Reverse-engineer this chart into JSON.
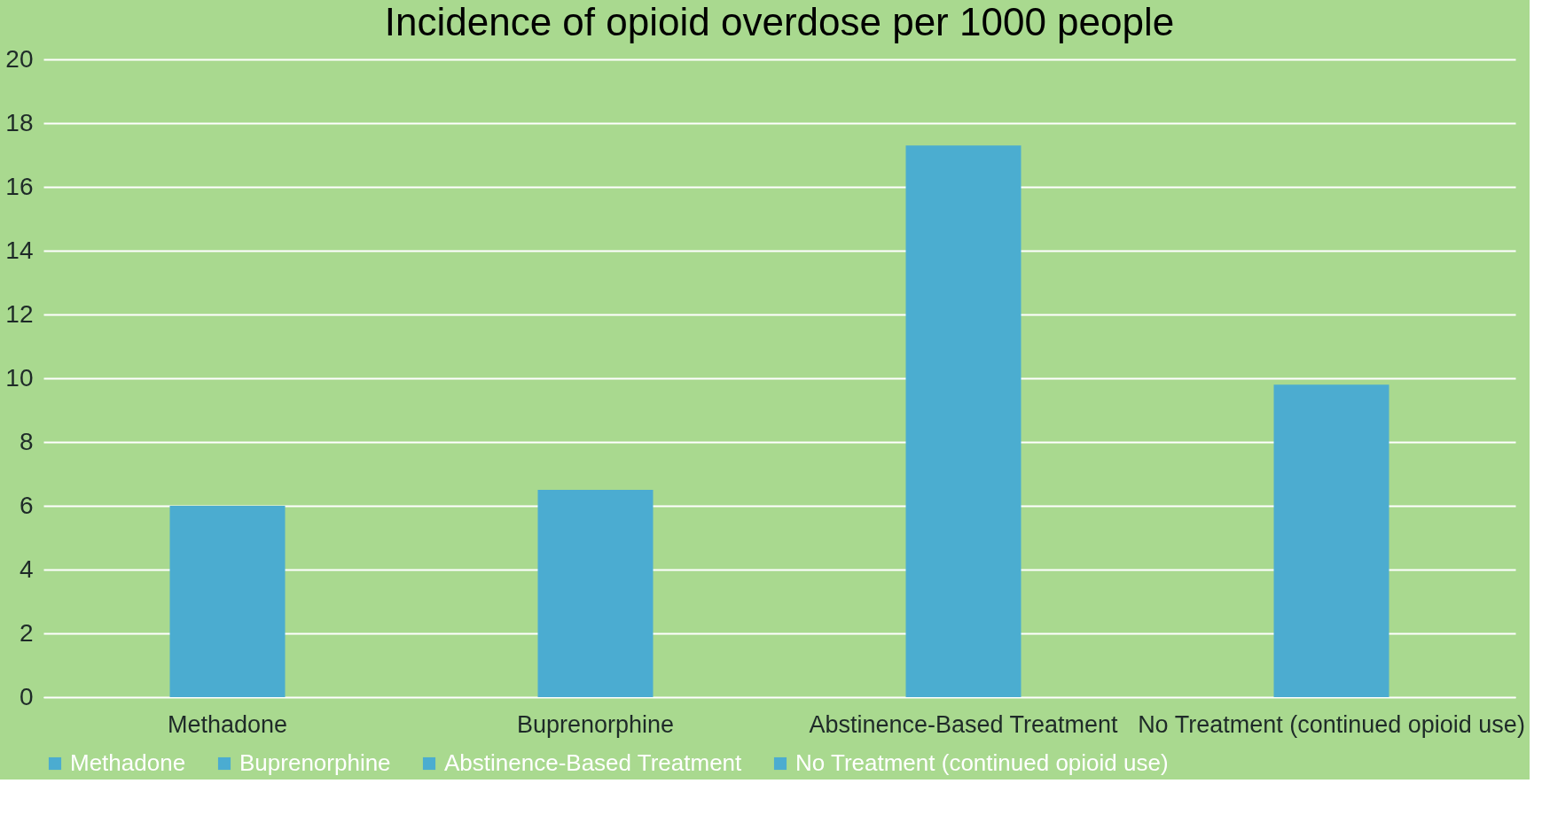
{
  "chart_data": {
    "type": "bar",
    "title": "Incidence of opioid overdose per 1000 people",
    "categories": [
      "Methadone",
      "Buprenorphine",
      "Abstinence-Based Treatment",
      "No Treatment (continued opioid use)"
    ],
    "series": [
      {
        "name": "Methadone",
        "color": "#4bacd0",
        "values": [
          6.0,
          null,
          null,
          null
        ]
      },
      {
        "name": "Buprenorphine",
        "color": "#4bacd1",
        "values": [
          null,
          6.5,
          null,
          null
        ]
      },
      {
        "name": "Abstinence-Based Treatment",
        "color": "#4badd0",
        "values": [
          null,
          null,
          17.3,
          null
        ]
      },
      {
        "name": "No Treatment (continued opioid use)",
        "color": "#4cacd0",
        "values": [
          null,
          null,
          null,
          9.8
        ]
      }
    ],
    "ylim": [
      0,
      20
    ],
    "yticks": [
      0,
      2,
      4,
      6,
      8,
      10,
      12,
      14,
      16,
      18,
      20
    ],
    "grid": "y",
    "legend": "bottom"
  }
}
